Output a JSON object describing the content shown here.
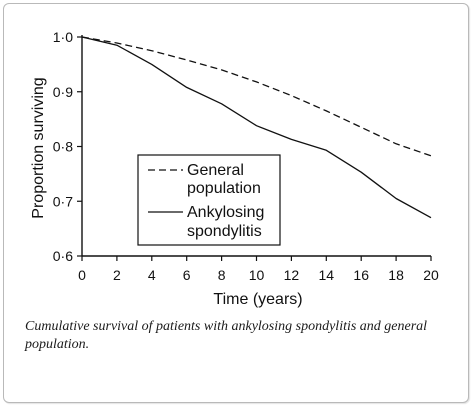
{
  "chart_data": {
    "type": "line",
    "xlabel": "Time (years)",
    "ylabel": "Proportion surviving",
    "xlim": [
      0,
      20
    ],
    "ylim": [
      0.6,
      1.0
    ],
    "x_ticks": [
      "0",
      "2",
      "4",
      "6",
      "8",
      "10",
      "12",
      "14",
      "16",
      "18",
      "20"
    ],
    "y_ticks": [
      "0·6",
      "0·7",
      "0·8",
      "0·9",
      "1·0"
    ],
    "grid": false,
    "legend_position": "center",
    "series": [
      {
        "name": "General population",
        "style": "dashed",
        "x": [
          0,
          2,
          4,
          6,
          8,
          10,
          12,
          14,
          16,
          18,
          20
        ],
        "y": [
          1.0,
          0.989,
          0.975,
          0.958,
          0.94,
          0.918,
          0.893,
          0.865,
          0.835,
          0.805,
          0.783
        ]
      },
      {
        "name": "Ankylosing spondylitis",
        "style": "solid",
        "x": [
          0,
          2,
          4,
          6,
          8,
          10,
          12,
          14,
          16,
          18,
          20
        ],
        "y": [
          1.0,
          0.985,
          0.95,
          0.908,
          0.878,
          0.838,
          0.813,
          0.793,
          0.753,
          0.705,
          0.67
        ]
      }
    ]
  },
  "legend": {
    "general_line1": "General",
    "general_line2": "population",
    "ankylosing_line1": "Ankylosing",
    "ankylosing_line2": "spondylitis"
  },
  "caption": "Cumulative survival of patients with ankylosing spondylitis and general population."
}
